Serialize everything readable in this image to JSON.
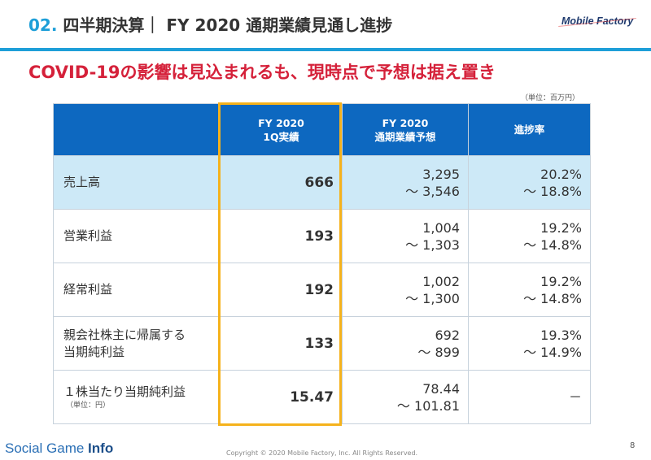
{
  "header": {
    "section_no": "02.",
    "section_name": "四半期決算",
    "divider": "｜",
    "title": "FY 2020 通期業績見通し進捗",
    "logo": "Mobile Factory"
  },
  "headline": "COVID-19の影響は見込まれるも、現時点で予想は据え置き",
  "unit_note": "（単位：百万円）",
  "table": {
    "headers": {
      "actual_line1": "FY 2020",
      "actual_line2": "1Q実績",
      "forecast_line1": "FY 2020",
      "forecast_line2": "通期業績予想",
      "rate": "進捗率"
    },
    "rows": [
      {
        "label": "売上高",
        "actual": "666",
        "forecast_low": "3,295",
        "forecast_high": "～ 3,546",
        "rate_low": "20.2%",
        "rate_high": "～ 18.8%"
      },
      {
        "label": "営業利益",
        "actual": "193",
        "forecast_low": "1,004",
        "forecast_high": "～ 1,303",
        "rate_low": "19.2%",
        "rate_high": "～ 14.8%"
      },
      {
        "label": "経常利益",
        "actual": "192",
        "forecast_low": "1,002",
        "forecast_high": "～ 1,300",
        "rate_low": "19.2%",
        "rate_high": "～ 14.8%"
      },
      {
        "label_line1": "親会社株主に帰属する",
        "label_line2": "当期純利益",
        "actual": "133",
        "forecast_low": "692",
        "forecast_high": "～ 899",
        "rate_low": "19.3%",
        "rate_high": "～ 14.9%"
      },
      {
        "label": "１株当たり当期純利益",
        "label_sub": "（単位：円）",
        "actual": "15.47",
        "forecast_low": "78.44",
        "forecast_high": "～ 101.81",
        "rate": "－"
      }
    ]
  },
  "footer": {
    "brand_part1": "Social Game ",
    "brand_part2": "Info",
    "copyright": "Copyright © 2020 Mobile Factory, Inc. All Rights Reserved.",
    "page_number": "8"
  },
  "colors": {
    "accent_blue": "#1e9fd8",
    "table_header": "#0d68c0",
    "highlight_row": "#cde9f7",
    "headline_red": "#d5213a",
    "frame_gold": "#f5b21b"
  }
}
